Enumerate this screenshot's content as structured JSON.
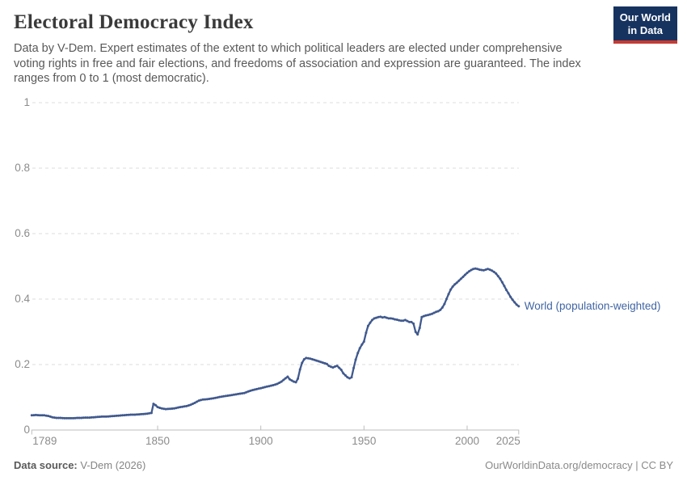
{
  "header": {
    "title": "Electoral Democracy Index",
    "subtitle_lines": [
      "Data by V-Dem. Expert estimates of the extent to which political leaders are elected under comprehensive",
      "voting rights in free and fair elections, and freedoms of association and expression are guaranteed. The index",
      "ranges from 0 to 1 (most democratic)."
    ],
    "logo_line1": "Our World",
    "logo_line2": "in Data"
  },
  "chart_data": {
    "type": "line",
    "title": "Electoral Democracy Index",
    "xlabel": "",
    "ylabel": "",
    "xlim": [
      1789,
      2025
    ],
    "ylim": [
      0,
      1
    ],
    "x_ticks": [
      1789,
      1850,
      1900,
      1950,
      2000,
      2025
    ],
    "x_tick_labels": [
      "1789",
      "1850",
      "1900",
      "1950",
      "2000",
      "2025"
    ],
    "y_ticks": [
      0,
      0.2,
      0.4,
      0.6,
      0.8,
      1
    ],
    "y_tick_labels": [
      "0",
      "0.2",
      "0.4",
      "0.6",
      "0.8",
      "1"
    ],
    "grid": "horizontal-dashed",
    "legend_position": "end-of-line-label",
    "series": [
      {
        "name": "World (population-weighted)",
        "color": "#40598e",
        "points": [
          [
            1789,
            0.045
          ],
          [
            1791,
            0.046
          ],
          [
            1793,
            0.045
          ],
          [
            1795,
            0.045
          ],
          [
            1797,
            0.043
          ],
          [
            1799,
            0.039
          ],
          [
            1801,
            0.037
          ],
          [
            1803,
            0.037
          ],
          [
            1805,
            0.036
          ],
          [
            1807,
            0.036
          ],
          [
            1809,
            0.036
          ],
          [
            1811,
            0.037
          ],
          [
            1813,
            0.037
          ],
          [
            1815,
            0.038
          ],
          [
            1817,
            0.038
          ],
          [
            1819,
            0.039
          ],
          [
            1821,
            0.04
          ],
          [
            1823,
            0.041
          ],
          [
            1825,
            0.041
          ],
          [
            1827,
            0.042
          ],
          [
            1829,
            0.043
          ],
          [
            1831,
            0.044
          ],
          [
            1833,
            0.045
          ],
          [
            1835,
            0.046
          ],
          [
            1837,
            0.047
          ],
          [
            1839,
            0.047
          ],
          [
            1841,
            0.048
          ],
          [
            1843,
            0.049
          ],
          [
            1845,
            0.05
          ],
          [
            1847,
            0.052
          ],
          [
            1848,
            0.08
          ],
          [
            1849,
            0.076
          ],
          [
            1850,
            0.07
          ],
          [
            1852,
            0.066
          ],
          [
            1854,
            0.064
          ],
          [
            1856,
            0.065
          ],
          [
            1858,
            0.066
          ],
          [
            1860,
            0.069
          ],
          [
            1862,
            0.071
          ],
          [
            1864,
            0.073
          ],
          [
            1866,
            0.077
          ],
          [
            1868,
            0.083
          ],
          [
            1870,
            0.09
          ],
          [
            1872,
            0.093
          ],
          [
            1874,
            0.094
          ],
          [
            1876,
            0.096
          ],
          [
            1878,
            0.098
          ],
          [
            1880,
            0.101
          ],
          [
            1882,
            0.103
          ],
          [
            1884,
            0.105
          ],
          [
            1886,
            0.107
          ],
          [
            1888,
            0.109
          ],
          [
            1890,
            0.111
          ],
          [
            1892,
            0.113
          ],
          [
            1894,
            0.118
          ],
          [
            1896,
            0.122
          ],
          [
            1898,
            0.125
          ],
          [
            1900,
            0.128
          ],
          [
            1902,
            0.131
          ],
          [
            1904,
            0.134
          ],
          [
            1906,
            0.137
          ],
          [
            1908,
            0.141
          ],
          [
            1910,
            0.148
          ],
          [
            1912,
            0.158
          ],
          [
            1913,
            0.163
          ],
          [
            1914,
            0.155
          ],
          [
            1915,
            0.151
          ],
          [
            1916,
            0.148
          ],
          [
            1917,
            0.146
          ],
          [
            1918,
            0.157
          ],
          [
            1919,
            0.185
          ],
          [
            1920,
            0.205
          ],
          [
            1921,
            0.216
          ],
          [
            1922,
            0.22
          ],
          [
            1924,
            0.218
          ],
          [
            1926,
            0.214
          ],
          [
            1928,
            0.21
          ],
          [
            1930,
            0.206
          ],
          [
            1932,
            0.202
          ],
          [
            1933,
            0.196
          ],
          [
            1934,
            0.193
          ],
          [
            1935,
            0.191
          ],
          [
            1936,
            0.194
          ],
          [
            1937,
            0.196
          ],
          [
            1938,
            0.19
          ],
          [
            1939,
            0.184
          ],
          [
            1940,
            0.173
          ],
          [
            1941,
            0.167
          ],
          [
            1942,
            0.161
          ],
          [
            1943,
            0.158
          ],
          [
            1944,
            0.161
          ],
          [
            1945,
            0.19
          ],
          [
            1946,
            0.215
          ],
          [
            1947,
            0.235
          ],
          [
            1948,
            0.25
          ],
          [
            1949,
            0.261
          ],
          [
            1950,
            0.27
          ],
          [
            1951,
            0.297
          ],
          [
            1952,
            0.318
          ],
          [
            1953,
            0.328
          ],
          [
            1954,
            0.336
          ],
          [
            1955,
            0.341
          ],
          [
            1956,
            0.343
          ],
          [
            1957,
            0.345
          ],
          [
            1958,
            0.346
          ],
          [
            1959,
            0.344
          ],
          [
            1960,
            0.345
          ],
          [
            1961,
            0.343
          ],
          [
            1962,
            0.341
          ],
          [
            1963,
            0.341
          ],
          [
            1964,
            0.34
          ],
          [
            1965,
            0.338
          ],
          [
            1966,
            0.337
          ],
          [
            1967,
            0.335
          ],
          [
            1968,
            0.334
          ],
          [
            1969,
            0.334
          ],
          [
            1970,
            0.336
          ],
          [
            1971,
            0.333
          ],
          [
            1972,
            0.33
          ],
          [
            1973,
            0.33
          ],
          [
            1974,
            0.325
          ],
          [
            1975,
            0.3
          ],
          [
            1976,
            0.292
          ],
          [
            1977,
            0.312
          ],
          [
            1978,
            0.345
          ],
          [
            1979,
            0.348
          ],
          [
            1980,
            0.35
          ],
          [
            1981,
            0.351
          ],
          [
            1982,
            0.353
          ],
          [
            1983,
            0.355
          ],
          [
            1984,
            0.358
          ],
          [
            1985,
            0.361
          ],
          [
            1986,
            0.363
          ],
          [
            1987,
            0.367
          ],
          [
            1988,
            0.374
          ],
          [
            1989,
            0.385
          ],
          [
            1990,
            0.4
          ],
          [
            1991,
            0.415
          ],
          [
            1992,
            0.429
          ],
          [
            1993,
            0.438
          ],
          [
            1994,
            0.445
          ],
          [
            1995,
            0.45
          ],
          [
            1996,
            0.456
          ],
          [
            1997,
            0.462
          ],
          [
            1998,
            0.468
          ],
          [
            1999,
            0.474
          ],
          [
            2000,
            0.48
          ],
          [
            2001,
            0.485
          ],
          [
            2002,
            0.489
          ],
          [
            2003,
            0.492
          ],
          [
            2004,
            0.493
          ],
          [
            2005,
            0.492
          ],
          [
            2006,
            0.49
          ],
          [
            2007,
            0.489
          ],
          [
            2008,
            0.488
          ],
          [
            2009,
            0.49
          ],
          [
            2010,
            0.492
          ],
          [
            2011,
            0.49
          ],
          [
            2012,
            0.487
          ],
          [
            2013,
            0.483
          ],
          [
            2014,
            0.478
          ],
          [
            2015,
            0.47
          ],
          [
            2016,
            0.462
          ],
          [
            2017,
            0.451
          ],
          [
            2018,
            0.44
          ],
          [
            2019,
            0.428
          ],
          [
            2020,
            0.418
          ],
          [
            2021,
            0.407
          ],
          [
            2022,
            0.398
          ],
          [
            2023,
            0.39
          ],
          [
            2024,
            0.383
          ],
          [
            2025,
            0.378
          ]
        ]
      }
    ]
  },
  "footer": {
    "source_label": "Data source:",
    "source_value": "V-Dem (2026)",
    "license": "OurWorldinData.org/democracy | CC BY"
  },
  "colors": {
    "line": "#40598e",
    "series_label": "#4165a3",
    "grid": "#dedede",
    "axis": "#bdbdbd",
    "tick_text": "#8c8c8c",
    "logo_navy": "#163360",
    "logo_red": "#c43b33"
  }
}
